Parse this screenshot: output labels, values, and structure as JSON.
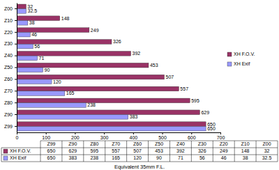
{
  "chart_data": {
    "type": "bar",
    "orientation": "horizontal",
    "categories": [
      "Z99",
      "Z90",
      "Z80",
      "Z70",
      "Z60",
      "Z50",
      "Z40",
      "Z30",
      "Z20",
      "Z10",
      "Z00"
    ],
    "series": [
      {
        "name": "XH F.O.V.",
        "color": "#993366",
        "values": [
          650,
          629,
          595,
          557,
          507,
          453,
          392,
          326,
          249,
          148,
          32
        ]
      },
      {
        "name": "XH Exif",
        "color": "#9999ff",
        "values": [
          650,
          383,
          238,
          165,
          120,
          90,
          71,
          56,
          46,
          38,
          32.5
        ]
      }
    ],
    "xlim": [
      0,
      700
    ],
    "xticks": [
      0,
      100,
      200,
      300,
      400,
      500,
      600,
      700
    ],
    "x_label": "Equivalent 35mm F.L.",
    "data_labels": true,
    "legend": "right",
    "grid": false
  }
}
